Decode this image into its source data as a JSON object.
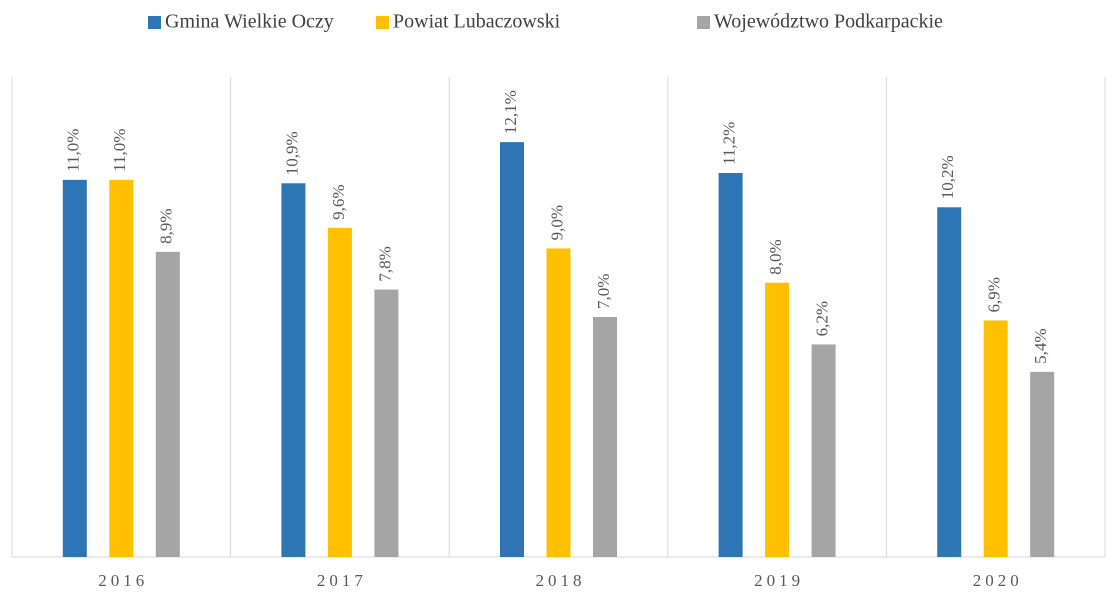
{
  "chart_data": {
    "type": "bar",
    "categories": [
      "2016",
      "2017",
      "2018",
      "2019",
      "2020"
    ],
    "series": [
      {
        "name": "Gmina Wielkie Oczy",
        "color": "#2e75b6",
        "values": [
          11.0,
          10.9,
          12.1,
          11.2,
          10.2
        ],
        "value_labels": [
          "11,0%",
          "10,9%",
          "12,1%",
          "11,2%",
          "10,2%"
        ]
      },
      {
        "name": "Powiat Lubaczowski",
        "color": "#ffc000",
        "values": [
          11.0,
          9.6,
          9.0,
          8.0,
          6.9
        ],
        "value_labels": [
          "11,0%",
          "9,6%",
          "9,0%",
          "8,0%",
          "6,9%"
        ]
      },
      {
        "name": "Województwo Podkarpackie",
        "color": "#a5a5a5",
        "values": [
          8.9,
          7.8,
          7.0,
          6.2,
          5.4
        ],
        "value_labels": [
          "8,9%",
          "7,8%",
          "7,0%",
          "6,2%",
          "5,4%"
        ]
      }
    ],
    "ylim": [
      0,
      14
    ]
  }
}
